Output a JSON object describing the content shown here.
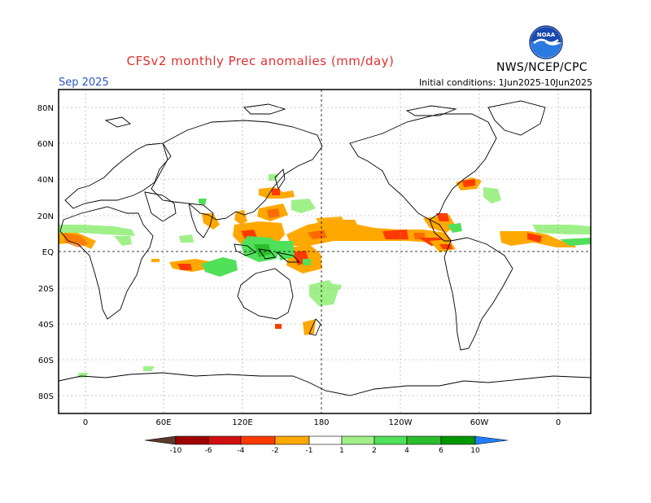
{
  "header": {
    "title": "CFSv2 monthly Prec anomalies (mm/day)",
    "month": "Sep 2025",
    "initial_conditions": "Initial conditions: 1Jun2025-10Jun2025",
    "agency": "NWS/NCEP/CPC",
    "logo_text": "NOAA"
  },
  "colors": {
    "title": "#e03030",
    "month": "#2a56c6",
    "frame": "#000000",
    "grid": "#999999"
  },
  "axes": {
    "lat_labels": [
      "80N",
      "60N",
      "40N",
      "20N",
      "EQ",
      "20S",
      "40S",
      "60S",
      "80S"
    ],
    "lon_labels": [
      "0",
      "60E",
      "120E",
      "180",
      "120W",
      "60W",
      "0"
    ]
  },
  "colorbar": {
    "labels": [
      "-10",
      "-6",
      "-4",
      "-2",
      "-1",
      "1",
      "2",
      "4",
      "6",
      "10"
    ],
    "colors": [
      "#5a3a2a",
      "#a00000",
      "#d01010",
      "#ff3a00",
      "#ff9a00",
      "#ffa800",
      "#ffffff",
      "#a0f08a",
      "#50e05a",
      "#2cbd2c",
      "#15a015",
      "#009600",
      "#2080ff"
    ]
  }
}
